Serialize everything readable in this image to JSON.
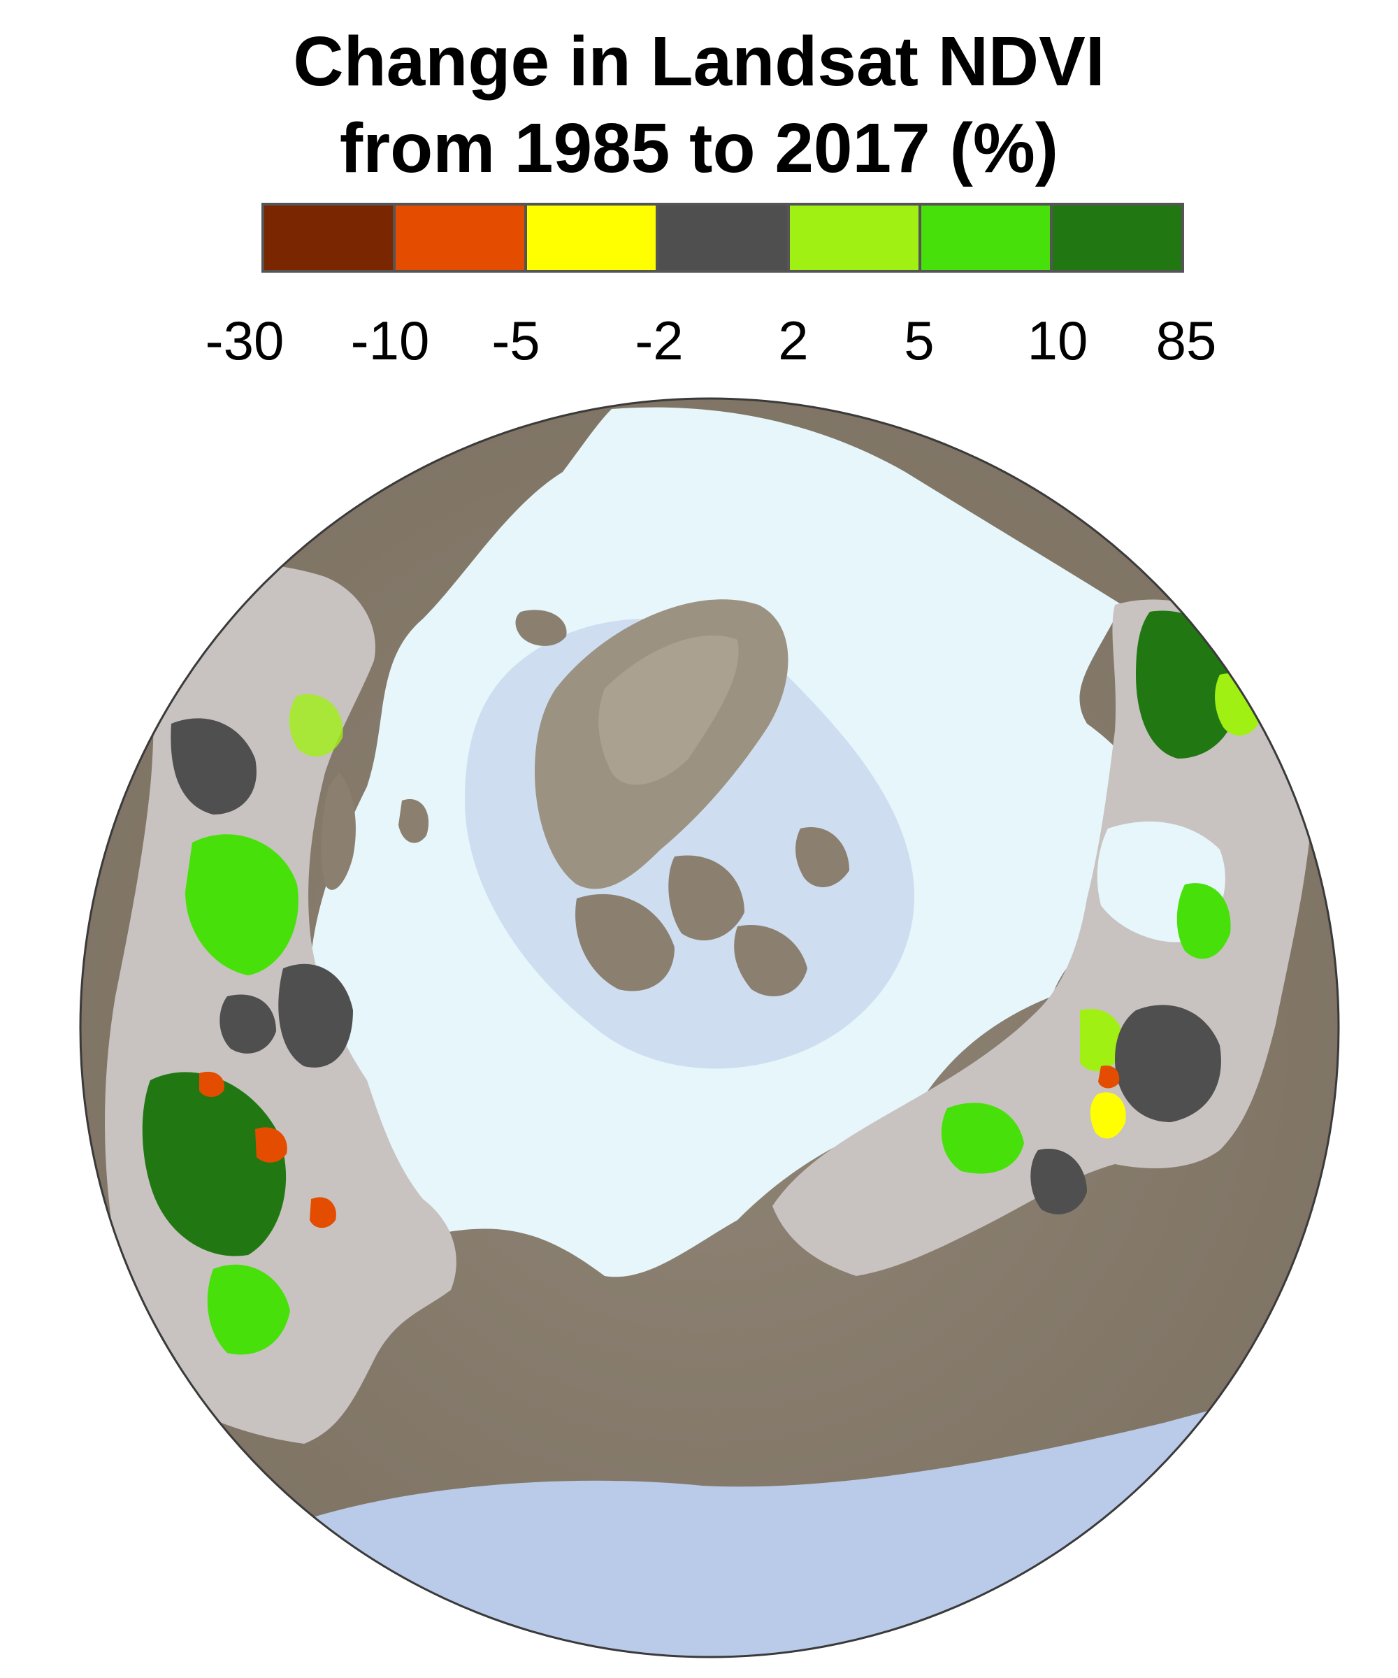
{
  "title_line1": "Change in Landsat NDVI",
  "title_line2": "from 1985 to 2017 (%)",
  "legend": {
    "colors": [
      "#7a2600",
      "#e44d00",
      "#ffff00",
      "#4f4f4f",
      "#a0f014",
      "#48e00a",
      "#217813"
    ],
    "breaks": [
      "-30",
      "-10",
      "-5",
      "-2",
      "2",
      "5",
      "10",
      "85"
    ]
  },
  "map": {
    "colors": {
      "ocean_deep": "#b9cbe8",
      "ocean_shelf": "#e6f6fb",
      "land_relief": "#8b7f70",
      "study_area": "#c8c3c0",
      "greenland": "#9c9282",
      "browning": "#e44d00",
      "neutral": "#4f4f4f",
      "greening_low": "#a0f014",
      "greening_mid": "#48e00a",
      "greening_high": "#217813",
      "yellow": "#ffff00"
    }
  }
}
